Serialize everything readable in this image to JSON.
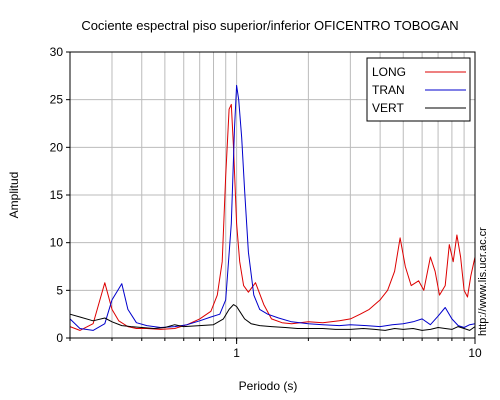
{
  "chart_data": {
    "type": "line",
    "title": "Cociente espectral piso superior/inferior OFICENTRO TOBOGAN",
    "xlabel": "Periodo (s)",
    "ylabel": "Amplitud",
    "xscale": "log",
    "xlim": [
      0.2,
      10
    ],
    "ylim": [
      0,
      30
    ],
    "xticks": [
      {
        "v": 1,
        "label": "1"
      },
      {
        "v": 10,
        "label": "10"
      }
    ],
    "yticks": [
      0,
      5,
      10,
      15,
      20,
      25,
      30
    ],
    "grid": true,
    "legend_position": "top-right",
    "watermark": "http://www.lis.ucr.ac.cr",
    "colors": {
      "LONG": "#dd0000",
      "TRAN": "#0000cc",
      "VERT": "#000000"
    },
    "series": [
      {
        "name": "LONG",
        "x": [
          0.2,
          0.22,
          0.25,
          0.28,
          0.3,
          0.32,
          0.35,
          0.38,
          0.42,
          0.48,
          0.55,
          0.62,
          0.7,
          0.78,
          0.83,
          0.87,
          0.9,
          0.93,
          0.95,
          0.97,
          1.0,
          1.03,
          1.07,
          1.12,
          1.2,
          1.3,
          1.4,
          1.55,
          1.7,
          2.0,
          2.3,
          2.7,
          3.0,
          3.3,
          3.6,
          4.0,
          4.3,
          4.6,
          4.85,
          5.1,
          5.4,
          5.8,
          6.1,
          6.5,
          6.8,
          7.1,
          7.5,
          7.8,
          8.1,
          8.4,
          8.7,
          9.0,
          9.3,
          9.6,
          10.0
        ],
        "y": [
          1.2,
          0.8,
          1.5,
          5.8,
          3.0,
          1.8,
          1.2,
          1.0,
          1.0,
          0.9,
          1.0,
          1.4,
          2.0,
          2.8,
          4.5,
          8.0,
          17.0,
          24.0,
          24.5,
          20.0,
          12.0,
          8.0,
          5.5,
          4.8,
          5.8,
          3.5,
          2.0,
          1.6,
          1.5,
          1.7,
          1.6,
          1.8,
          2.0,
          2.5,
          3.0,
          4.0,
          5.0,
          7.0,
          10.5,
          7.5,
          5.5,
          6.0,
          5.0,
          8.5,
          7.0,
          4.5,
          5.5,
          9.8,
          8.0,
          10.8,
          8.5,
          5.0,
          4.3,
          6.5,
          8.5
        ]
      },
      {
        "name": "TRAN",
        "x": [
          0.2,
          0.22,
          0.25,
          0.28,
          0.3,
          0.33,
          0.35,
          0.38,
          0.42,
          0.48,
          0.55,
          0.62,
          0.7,
          0.78,
          0.85,
          0.9,
          0.95,
          0.98,
          1.0,
          1.02,
          1.05,
          1.08,
          1.12,
          1.18,
          1.25,
          1.35,
          1.5,
          1.7,
          2.0,
          2.3,
          2.7,
          3.0,
          3.5,
          4.0,
          4.5,
          5.0,
          5.5,
          6.0,
          6.5,
          7.0,
          7.5,
          8.0,
          8.5,
          9.0,
          9.5,
          10.0
        ],
        "y": [
          2.0,
          1.0,
          0.8,
          1.5,
          4.0,
          5.7,
          3.0,
          1.6,
          1.3,
          1.1,
          1.2,
          1.4,
          1.8,
          2.2,
          2.5,
          4.0,
          12.0,
          22.0,
          26.5,
          25.0,
          21.0,
          15.5,
          9.0,
          4.5,
          3.0,
          2.5,
          2.1,
          1.7,
          1.5,
          1.4,
          1.3,
          1.4,
          1.3,
          1.2,
          1.4,
          1.5,
          1.7,
          2.0,
          1.4,
          2.3,
          3.2,
          2.0,
          1.3,
          1.1,
          1.4,
          1.5
        ]
      },
      {
        "name": "VERT",
        "x": [
          0.2,
          0.22,
          0.25,
          0.28,
          0.3,
          0.33,
          0.36,
          0.4,
          0.45,
          0.5,
          0.55,
          0.6,
          0.7,
          0.8,
          0.88,
          0.93,
          0.97,
          1.0,
          1.03,
          1.08,
          1.15,
          1.25,
          1.4,
          1.6,
          1.8,
          2.0,
          2.3,
          2.6,
          3.0,
          3.4,
          3.8,
          4.2,
          4.6,
          5.0,
          5.5,
          6.0,
          6.5,
          7.0,
          7.5,
          8.0,
          8.5,
          9.0,
          9.5,
          10.0
        ],
        "y": [
          2.5,
          2.2,
          1.8,
          2.1,
          1.7,
          1.3,
          1.2,
          1.1,
          1.0,
          1.1,
          1.4,
          1.2,
          1.3,
          1.4,
          2.0,
          3.0,
          3.5,
          3.3,
          2.8,
          2.0,
          1.5,
          1.3,
          1.2,
          1.1,
          1.0,
          1.0,
          1.0,
          0.9,
          0.9,
          1.0,
          0.9,
          0.8,
          1.0,
          0.9,
          1.0,
          0.8,
          0.9,
          1.1,
          1.0,
          0.9,
          1.2,
          1.0,
          0.8,
          1.2
        ]
      }
    ]
  }
}
